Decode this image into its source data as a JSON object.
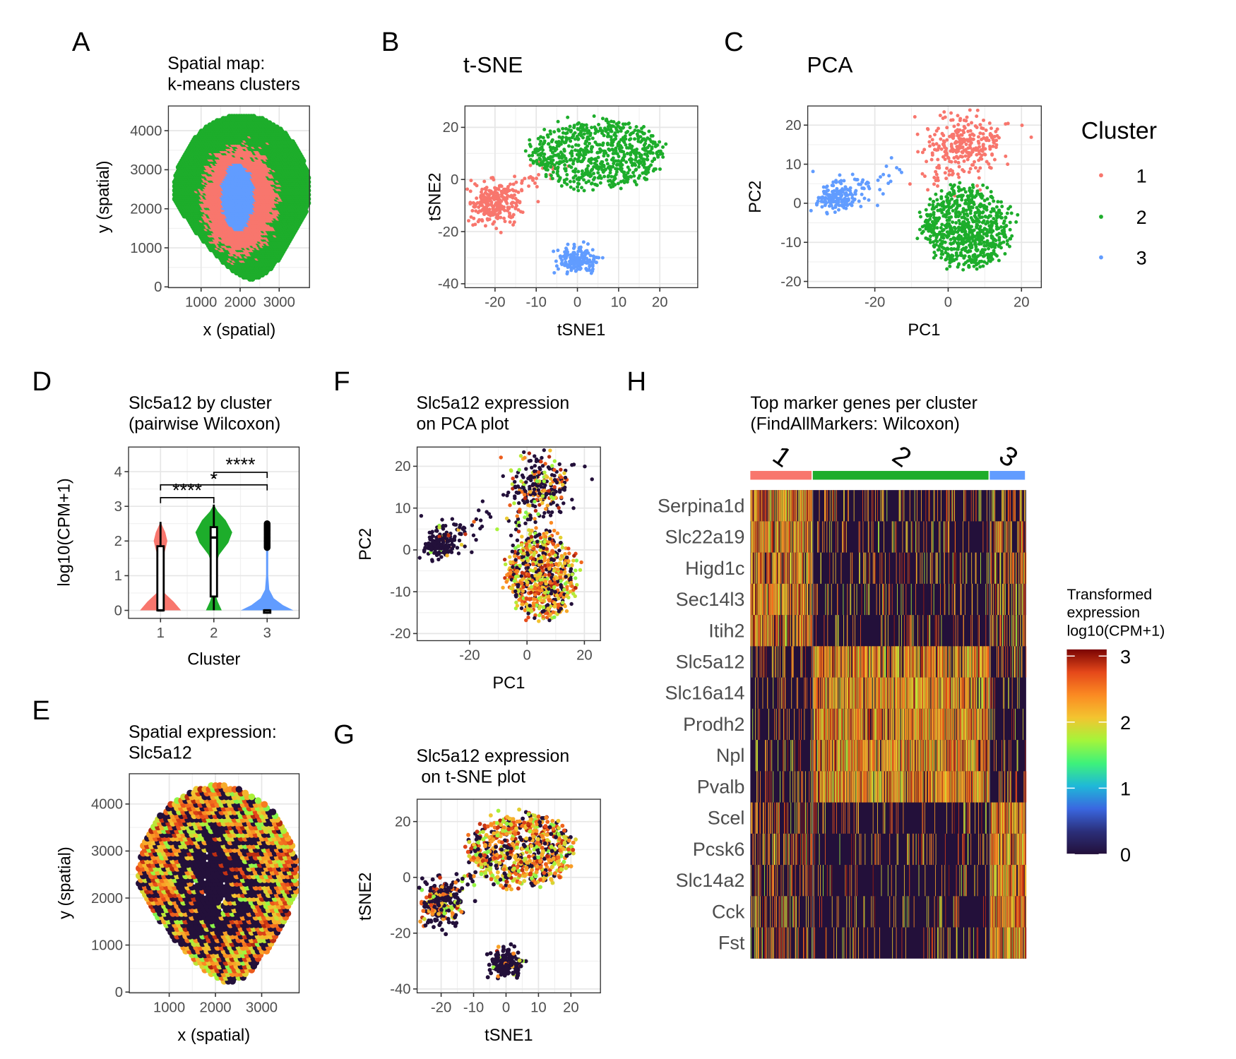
{
  "legend": {
    "title": "Cluster",
    "items": [
      {
        "label": "1",
        "color": "#F8766D"
      },
      {
        "label": "2",
        "color": "#1DAD2B"
      },
      {
        "label": "3",
        "color": "#619CFF"
      }
    ]
  },
  "expression_palette": [
    "#23103a",
    "#2b2f7a",
    "#3a67e0",
    "#1fb8d8",
    "#3ef27a",
    "#a4f53a",
    "#f3c430",
    "#fb8a22",
    "#e5481a",
    "#7a0403"
  ],
  "chart_data": [
    {
      "panel": "A",
      "type": "scatter",
      "title": [
        "Spatial map:",
        "k-means clusters"
      ],
      "xlabel": "x (spatial)",
      "ylabel": "y (spatial)",
      "xticks": [
        1000,
        2000,
        3000
      ],
      "yticks": [
        0,
        1000,
        2000,
        3000,
        4000
      ],
      "xlim": [
        163,
        3776
      ],
      "ylim": [
        -20,
        4633
      ],
      "color_by": "cluster",
      "grid": true,
      "tissue_extent": {
        "x": [
          300,
          3750
        ],
        "y": [
          150,
          4420
        ]
      },
      "regions": [
        {
          "cluster": 3,
          "center": [
            1950,
            2350
          ],
          "radii": [
            420,
            850
          ]
        },
        {
          "cluster": 1,
          "center": [
            2000,
            2250
          ],
          "radii": [
            1080,
            1550
          ]
        },
        {
          "cluster": 2,
          "center": [
            2050,
            2300
          ],
          "radii": [
            1750,
            2100
          ]
        }
      ]
    },
    {
      "panel": "B",
      "type": "scatter",
      "title": [
        "t-SNE"
      ],
      "xlabel": "tSNE1",
      "ylabel": "tSNE2",
      "xticks": [
        -20,
        -10,
        0,
        10,
        20
      ],
      "yticks": [
        -40,
        -20,
        0,
        20
      ],
      "xlim": [
        -27.3,
        29.2
      ],
      "ylim": [
        -41.5,
        28.2
      ],
      "grid": true,
      "clusters": [
        {
          "cluster": 1,
          "center": [
            -20,
            -9
          ],
          "sd": [
            3,
            4
          ],
          "n": 260
        },
        {
          "cluster": 2,
          "center": [
            5,
            10
          ],
          "sd": [
            8,
            6.5
          ],
          "n": 700
        },
        {
          "cluster": 3,
          "center": [
            0,
            -31
          ],
          "sd": [
            2.2,
            2.5
          ],
          "n": 160
        }
      ]
    },
    {
      "panel": "C",
      "type": "scatter",
      "title": [
        "PCA"
      ],
      "xlabel": "PC1",
      "ylabel": "PC2",
      "xticks": [
        -20,
        0,
        20
      ],
      "yticks": [
        -20,
        -10,
        0,
        10,
        20
      ],
      "xlim": [
        -38.3,
        25.4
      ],
      "ylim": [
        -21.6,
        24.9
      ],
      "grid": true,
      "legend_position": "right",
      "clusters": [
        {
          "cluster": 1,
          "center": [
            5,
            15
          ],
          "sd": [
            5,
            4
          ],
          "n": 260
        },
        {
          "cluster": 2,
          "center": [
            5,
            -6
          ],
          "sd": [
            6,
            5
          ],
          "n": 700
        },
        {
          "cluster": 3,
          "center": [
            -30,
            1.5
          ],
          "sd": [
            3.5,
            2
          ],
          "n": 160
        }
      ]
    },
    {
      "panel": "D",
      "type": "violin",
      "title": [
        "Slc5a12 by cluster",
        "(pairwise Wilcoxon)"
      ],
      "xlabel": "Cluster",
      "ylabel": "log10(CPM+1)",
      "categories": [
        "1",
        "2",
        "3"
      ],
      "yticks": [
        0,
        1,
        2,
        3,
        4
      ],
      "ylim": [
        -0.23,
        4.71
      ],
      "grid": true,
      "density": [
        [
          [
            0,
            0.78
          ],
          [
            0.25,
            0.5
          ],
          [
            0.5,
            0.15
          ],
          [
            0.8,
            0.04
          ],
          [
            1.4,
            0.05
          ],
          [
            1.75,
            0.18
          ],
          [
            2.0,
            0.26
          ],
          [
            2.25,
            0.18
          ],
          [
            2.45,
            0.06
          ],
          [
            2.55,
            0
          ]
        ],
        [
          [
            0,
            0.3
          ],
          [
            0.25,
            0.15
          ],
          [
            0.55,
            0.02
          ],
          [
            1.2,
            0.02
          ],
          [
            1.6,
            0.2
          ],
          [
            1.95,
            0.55
          ],
          [
            2.25,
            0.7
          ],
          [
            2.6,
            0.45
          ],
          [
            2.85,
            0.15
          ],
          [
            3.05,
            0
          ]
        ],
        [
          [
            0,
            1.0
          ],
          [
            0.15,
            0.6
          ],
          [
            0.35,
            0.25
          ],
          [
            0.6,
            0.08
          ],
          [
            1.0,
            0.04
          ],
          [
            1.7,
            0.04
          ],
          [
            2.1,
            0.05
          ],
          [
            2.5,
            0
          ]
        ]
      ],
      "boxes": [
        {
          "min": 0,
          "q1": 0,
          "median": 0,
          "q3": 1.85,
          "max": 2.55
        },
        {
          "min": 0,
          "q1": 0.4,
          "median": 2.1,
          "q3": 2.4,
          "max": 3.05
        },
        {
          "min": 0,
          "q1": 0,
          "median": 0,
          "q3": 0,
          "max": 0,
          "outliers": [
            1.9,
            2.0,
            2.1,
            2.2,
            2.3,
            2.4,
            2.5
          ]
        }
      ],
      "comparisons": [
        {
          "groups": [
            "1",
            "2"
          ],
          "y": 3.25,
          "label": "****",
          "label_pos": [
            1.5,
            3.55
          ]
        },
        {
          "groups": [
            "1",
            "3"
          ],
          "y": 3.62,
          "label": "*",
          "label_pos": [
            2.0,
            3.88
          ]
        },
        {
          "groups": [
            "2",
            "3"
          ],
          "y": 3.98,
          "label": "****",
          "label_pos": [
            2.5,
            4.3
          ]
        }
      ]
    },
    {
      "panel": "E",
      "type": "scatter",
      "title": [
        "Spatial expression:",
        "Slc5a12"
      ],
      "xlabel": "x (spatial)",
      "ylabel": "y (spatial)",
      "xticks": [
        1000,
        2000,
        3000
      ],
      "yticks": [
        0,
        1000,
        2000,
        3000,
        4000
      ],
      "xlim": [
        138,
        3810
      ],
      "ylim": [
        -17,
        4644
      ],
      "grid": true,
      "color_by": "Slc5a12 log10(CPM+1)"
    },
    {
      "panel": "F",
      "type": "scatter",
      "title": [
        "Slc5a12 expression",
        "on PCA plot"
      ],
      "xlabel": "PC1",
      "ylabel": "PC2",
      "xticks": [
        -20,
        0,
        20
      ],
      "yticks": [
        -20,
        -10,
        0,
        10,
        20
      ],
      "xlim": [
        -38.3,
        25.6
      ],
      "ylim": [
        -21.7,
        24.6
      ],
      "grid": true,
      "color_by": "Slc5a12 log10(CPM+1)"
    },
    {
      "panel": "G",
      "type": "scatter",
      "title": [
        "Slc5a12 expression",
        " on t-SNE plot"
      ],
      "xlabel": "tSNE1",
      "ylabel": "tSNE2",
      "xticks": [
        -20,
        -10,
        0,
        10,
        20
      ],
      "yticks": [
        -40,
        -20,
        0,
        20
      ],
      "xlim": [
        -27.4,
        29.1
      ],
      "ylim": [
        -41.4,
        28
      ],
      "grid": true,
      "color_by": "Slc5a12 log10(CPM+1)"
    },
    {
      "panel": "H",
      "type": "heatmap",
      "title": [
        "Top marker genes per cluster",
        "(FindAllMarkers: Wilcoxon)"
      ],
      "column_groups": [
        {
          "label": "1",
          "color": "#F8766D",
          "n_cells": 180
        },
        {
          "label": "2",
          "color": "#1DAD2B",
          "n_cells": 510
        },
        {
          "label": "3",
          "color": "#619CFF",
          "n_cells": 105
        }
      ],
      "genes": [
        "Serpina1d",
        "Slc22a19",
        "Higd1c",
        "Sec14l3",
        "Itih2",
        "Slc5a12",
        "Slc16a14",
        "Prodh2",
        "Npl",
        "Pvalb",
        "Scel",
        "Pcsk6",
        "Slc14a2",
        "Cck",
        "Fst"
      ],
      "gene_marker_cluster": [
        1,
        1,
        1,
        1,
        1,
        2,
        2,
        2,
        2,
        2,
        3,
        3,
        3,
        3,
        3
      ],
      "expressing_fraction": [
        [
          0.6,
          0.12,
          0.35
        ],
        [
          0.12,
          0.65,
          0.15
        ],
        [
          0.25,
          0.1,
          0.7
        ]
      ],
      "colorbar": {
        "title": [
          "Transformed",
          "expression",
          "log10(CPM+1)"
        ],
        "ticks": [
          0,
          1,
          2,
          3
        ],
        "range": [
          0,
          3.1
        ]
      }
    }
  ]
}
